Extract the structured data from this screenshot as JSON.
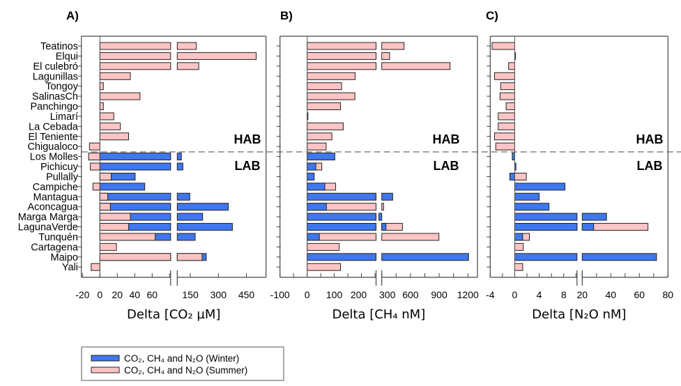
{
  "chart_data": [
    {
      "type": "bar",
      "orientation": "horizontal",
      "panel_label": "A)",
      "xlabel": "Delta [CO₂ µM]",
      "axis_break": [
        80,
        80
      ],
      "xlim": [
        -20,
        555
      ],
      "tick_labels": [
        "-20",
        "0",
        "20",
        "40",
        "60",
        "150",
        "300",
        "450"
      ],
      "tick_values": [
        -20,
        0,
        20,
        40,
        60,
        150,
        300,
        450
      ],
      "minor_ticks": [
        80
      ],
      "summer": [
        182,
        502,
        195,
        35,
        4,
        46,
        4,
        16,
        23.5,
        33,
        -12,
        -13,
        -11,
        13,
        -8,
        9,
        12,
        35,
        33,
        63.5,
        19,
        213,
        -10
      ],
      "winter": [
        null,
        null,
        null,
        null,
        null,
        null,
        null,
        null,
        null,
        null,
        null,
        102,
        110,
        40.5,
        51.5,
        147,
        353,
        216,
        375,
        176,
        null,
        235,
        null
      ]
    },
    {
      "type": "bar",
      "orientation": "horizontal",
      "panel_label": "B)",
      "xlabel": "Delta [CH₄ nM]",
      "axis_break": [
        250,
        300
      ],
      "xlim": [
        -100,
        1300
      ],
      "tick_labels": [
        "-100",
        "0",
        "100",
        "200",
        "300",
        "600",
        "900",
        "1200"
      ],
      "tick_values": [
        -100,
        0,
        100,
        200,
        300,
        600,
        900,
        1200
      ],
      "minor_ticks": [
        -50,
        50,
        150,
        250,
        450,
        750,
        1050
      ],
      "summer": [
        533,
        382,
        1014,
        177,
        127,
        176,
        123,
        2,
        133,
        91,
        70,
        null,
        54,
        null,
        105,
        null,
        319,
        null,
        516,
        897,
        118,
        null,
        123
      ],
      "winter": [
        null,
        null,
        null,
        null,
        null,
        null,
        null,
        null,
        null,
        null,
        null,
        102,
        32,
        26,
        65,
        414,
        71,
        270,
        344,
        45,
        null,
        1207,
        null
      ]
    },
    {
      "type": "bar",
      "orientation": "horizontal",
      "panel_label": "C)",
      "xlabel": "Delta [N₂O nM]",
      "axis_break": [
        10,
        20
      ],
      "xlim": [
        -4,
        80
      ],
      "tick_labels": [
        "-4",
        "0",
        "4",
        "8",
        "20",
        "40",
        "60",
        "80"
      ],
      "tick_values": [
        -4,
        0,
        4,
        8,
        20,
        40,
        60,
        80
      ],
      "minor_ticks": [
        -2,
        2,
        6,
        10,
        30,
        50,
        70
      ],
      "summer": [
        -3.7,
        0.1,
        -1.0,
        -3.3,
        -2.3,
        -2.4,
        -1.4,
        -2.7,
        -2.7,
        -3.3,
        -3.1,
        null,
        null,
        1.9,
        null,
        null,
        null,
        null,
        66,
        2.4,
        1.4,
        null,
        1.3
      ],
      "winter": [
        null,
        null,
        null,
        null,
        null,
        null,
        null,
        null,
        null,
        null,
        null,
        -0.4,
        0.2,
        -0.8,
        8.2,
        4.0,
        5.6,
        37,
        28,
        1.3,
        null,
        72,
        null
      ]
    }
  ],
  "categories": [
    "Teatinos",
    "Elqui",
    "El culebró",
    "Lagunillas",
    "Tongoy",
    "SalinasCh",
    "Panchingo",
    "Limarí",
    "La Cebada",
    "El Teniente",
    "Chigualoco",
    "Los Molles",
    "Pichicuy",
    "Pullally",
    "Campiche",
    "Mantagua",
    "Aconcagua",
    "Marga Marga",
    "LagunaVerde",
    "Tunquén",
    "Cartagena",
    "Maipo",
    "Yali"
  ],
  "zones": {
    "upper": "HAB",
    "lower": "LAB"
  },
  "legend": {
    "placement": "bottom-left",
    "winter": "CO₂, CH₄ and N₂O (Winter)",
    "summer": "CO₂, CH₄ and N₂O (Summer)"
  },
  "colors": {
    "winter": "#3f77ee",
    "summer": "#fcc4c4",
    "outline": "#222222"
  }
}
